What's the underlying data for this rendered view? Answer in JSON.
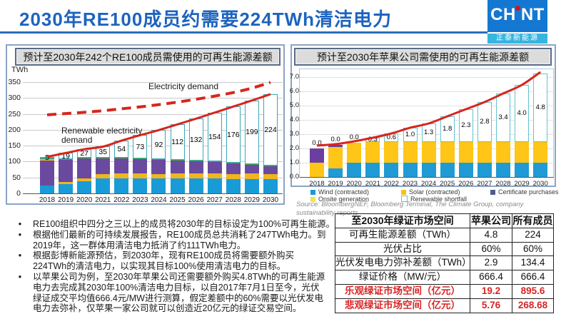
{
  "page": {
    "title": "2030年RE100成员约需要224TWh清洁电力",
    "title_color": "#1d64bf"
  },
  "logo": {
    "brand": "CHNT",
    "brand_left": "CH",
    "brand_right": "NT",
    "tagline": "正泰新能源",
    "brand_bg": "#1478d2",
    "tagline_bg": "#36b5e0"
  },
  "chart_data": [
    {
      "type": "bar",
      "panel_title": "预计至2030年242个RE100成员需使用的可再生能源差额",
      "ylabel": "TWh",
      "ylim": [
        0,
        350
      ],
      "ytick_step": 50,
      "categories": [
        "2018",
        "2019",
        "2020",
        "2021",
        "2022",
        "2023",
        "2024",
        "2025",
        "2026",
        "2027",
        "2028",
        "2029",
        "2030"
      ],
      "series": [
        {
          "name": "Wind (contracted)",
          "color": "#189bd7",
          "values": [
            25,
            30,
            38,
            47,
            47,
            47,
            46,
            47,
            47,
            46,
            45,
            45,
            44
          ]
        },
        {
          "name": "Onsite generation",
          "color": "#f0b51f",
          "values": [
            0,
            6,
            9,
            13,
            15,
            15,
            15,
            16,
            16,
            16,
            16,
            17,
            17
          ]
        },
        {
          "name": "Certificate purchases",
          "color": "#6a4a9e",
          "values": [
            79,
            70,
            63,
            50,
            48,
            46,
            44,
            40,
            38,
            36,
            34,
            29,
            25
          ]
        },
        {
          "name": "Onsite generation",
          "color": "#f0b51f",
          "values": [
            4,
            0,
            0,
            0,
            0,
            0,
            0,
            0,
            0,
            0,
            0,
            0,
            0
          ]
        },
        {
          "name": "Solar (contracted)",
          "color": "#43a647",
          "values": [
            2,
            2,
            2,
            2,
            2,
            2,
            2,
            2,
            2,
            2,
            2,
            2,
            2
          ]
        },
        {
          "name": "Renewable shortfall",
          "color": "#ffffff",
          "border_color": "#3aa7b8",
          "values": [
            5,
            19,
            27,
            35,
            54,
            73,
            92,
            112,
            132,
            154,
            176,
            199,
            224
          ],
          "labels": [
            "5",
            "19",
            "27",
            "35",
            "54",
            "73",
            "92",
            "112",
            "132",
            "154",
            "176",
            "199",
            "224"
          ],
          "show_labels": true
        }
      ],
      "lines": [
        {
          "name": "Renewable electricity demand",
          "style": "solid",
          "color": "#d8251c",
          "values": [
            115,
            127,
            139,
            147,
            166,
            183,
            199,
            217,
            235,
            254,
            273,
            292,
            312
          ]
        },
        {
          "name": "Electricity demand",
          "style": "dashed",
          "color": "#d8251c",
          "values": [
            247,
            251,
            255,
            260,
            266,
            272,
            279,
            287,
            296,
            306,
            317,
            331,
            349
          ]
        }
      ],
      "annotations": [
        "Electricity demand",
        "Renewable electricity\ndemand"
      ]
    },
    {
      "type": "bar",
      "panel_title": "预计至2030年苹果公司需使用的可再生能源差额",
      "ylabel": "",
      "ylim": [
        0,
        7
      ],
      "ytick_step": 1,
      "ytick_decimals": 1,
      "categories": [
        "2018",
        "2019",
        "2020",
        "2021",
        "2022",
        "2023",
        "2024",
        "2025",
        "2026",
        "2027",
        "2028",
        "2029",
        "2030"
      ],
      "series": [
        {
          "name": "Wind (contracted)",
          "color": "#1f9ad5",
          "values": [
            0,
            0.6,
            1,
            1,
            1,
            1,
            1,
            1,
            1,
            1,
            1,
            1,
            1
          ]
        },
        {
          "name": "Solar (contracted)",
          "color": "#ffc517",
          "values": [
            1.0,
            1.5,
            1.4,
            1.45,
            1.45,
            1.45,
            1.45,
            1.45,
            1.45,
            1.45,
            1.45,
            1.45,
            1.45
          ]
        },
        {
          "name": "Certificate purchases",
          "color": "#6b3fa0",
          "values": [
            1.0,
            0.15,
            0,
            0,
            0,
            0,
            0,
            0,
            0,
            0,
            0,
            0,
            0
          ]
        },
        {
          "name": "Renewable shortfall",
          "color": "#ffffff",
          "border_color": "#63c3d1",
          "values": [
            0,
            0,
            0,
            0.3,
            0.6,
            1.0,
            1.3,
            1.8,
            2.3,
            2.8,
            3.4,
            4.0,
            4.8
          ],
          "labels": [
            "0.0",
            "0.0",
            "0.0",
            "0.3",
            "0.6",
            "1.0",
            "1.3",
            "1.8",
            "2.3",
            "2.8",
            "3.4",
            "4.0",
            "4.8"
          ],
          "show_labels": true
        }
      ],
      "lines": [
        {
          "name": "Renewable electricity demand",
          "style": "solid",
          "color": "#d8251c",
          "values": [
            2.2,
            2.3,
            2.5,
            2.75,
            3.05,
            3.45,
            3.75,
            4.25,
            4.75,
            5.25,
            5.85,
            6.45,
            7.35
          ]
        }
      ],
      "legend": [
        {
          "label": "Wind (contracted)",
          "color": "#1f9ad5"
        },
        {
          "label": "Solar (contracted)",
          "color": "#f5c21d"
        },
        {
          "label": "Certificate purchases",
          "color": "#555a8a"
        },
        {
          "label": "Onsite generation",
          "color": "#f5e34b"
        },
        {
          "label": "Renewable shortfall",
          "color": "#ffffff",
          "border_color": "#63c3d1"
        }
      ],
      "source": "Source: BloombergNEF, Bloomberg Terminal, The Climate Group, company\nsustainability reports"
    }
  ],
  "bullets": [
    "RE100组织中四分之三以上的成员将2030年的目标设定为100%可再生能源。",
    "根据他们最新的可持续发展报告，RE100成员总共消耗了247TWh电力。到\n2019年，这一群体用清洁电力抵消了约111TWh电力。",
    "根据彭博新能源预估，到2030年，现有RE100成员将需要额外购买\n224TWh的清洁电力，以实现其目标100%使用清洁电力的目标。",
    "以苹果公司为例，至2030年苹果公司还需要额外购买4.8TWh的可再生能源\n电力去完成其2030年100%清洁电力目标，以自2017年7月1日至今，光伏\n绿证成交平均值666.4元/MW进行测算，假定差额中的60%需要以光伏发电\n电力去弥补，仅苹果一家公司就可以创造近20亿元的绿证交易空间。"
  ],
  "table": {
    "title": "至2030年绿证市场空间",
    "col_headers": [
      "苹果公司",
      "所有成员"
    ],
    "rows": [
      {
        "label": "可再生能源差额（TWh）",
        "apple": "4.8",
        "all": "224",
        "red": false
      },
      {
        "label": "光伏占比",
        "apple": "60%",
        "all": "60%",
        "red": false
      },
      {
        "label": "光伏发电电力弥补差额（TWh）",
        "apple": "2.9",
        "all": "134.4",
        "red": false
      },
      {
        "label": "绿证价格（MW/元）",
        "apple": "666.4",
        "all": "666.4",
        "red": false
      },
      {
        "label": "乐观绿证市场空间（亿元）",
        "apple": "19.2",
        "all": "895.6",
        "red": true
      },
      {
        "label": "悲观绿证市场空间（亿元）",
        "apple": "5.76",
        "all": "268.68",
        "red": true
      }
    ]
  }
}
